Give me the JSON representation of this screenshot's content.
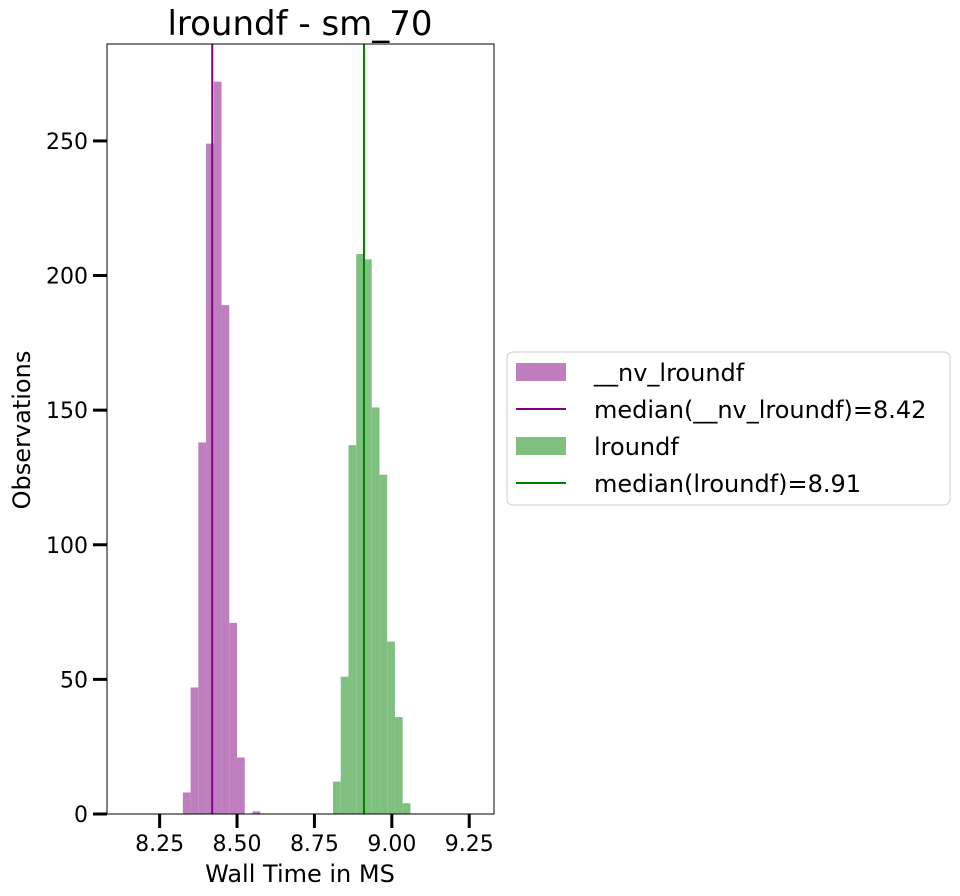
{
  "chart_data": {
    "type": "bar",
    "title": "lroundf - sm_70",
    "xlabel": "Wall Time in MS",
    "ylabel": "Observations",
    "xlim": [
      8.08,
      9.33
    ],
    "ylim": [
      0,
      286
    ],
    "xticks": [
      8.25,
      8.5,
      8.75,
      9.0,
      9.25
    ],
    "xtick_labels": [
      "8.25",
      "8.50",
      "8.75",
      "9.00",
      "9.25"
    ],
    "yticks": [
      0,
      50,
      100,
      150,
      200,
      250
    ],
    "ytick_labels": [
      "0",
      "50",
      "100",
      "150",
      "200",
      "250"
    ],
    "grid": false,
    "legend_position": "outside right",
    "series": [
      {
        "name": "__nv_lroundf",
        "color": "#bf7fbf",
        "bin_width": 0.025,
        "bin_starts": [
          8.325,
          8.35,
          8.375,
          8.4,
          8.425,
          8.45,
          8.475,
          8.5,
          8.525,
          8.55
        ],
        "counts": [
          8,
          47,
          138,
          249,
          272,
          189,
          71,
          21,
          0,
          1
        ]
      },
      {
        "name": "lroundf",
        "color": "#7fbf7f",
        "bin_width": 0.025,
        "bin_starts": [
          8.81,
          8.835,
          8.86,
          8.885,
          8.91,
          8.935,
          8.96,
          8.985,
          9.01,
          9.035
        ],
        "counts": [
          12,
          51,
          137,
          208,
          206,
          151,
          126,
          64,
          36,
          4
        ]
      }
    ],
    "medians": [
      {
        "label": "median(__nv_lroundf)=8.42",
        "value": 8.42,
        "color": "#800080"
      },
      {
        "label": "median(lroundf)=8.91",
        "value": 8.91,
        "color": "#008000"
      }
    ],
    "legend": [
      {
        "kind": "patch",
        "label": "__nv_lroundf",
        "color": "#bf7fbf"
      },
      {
        "kind": "line",
        "label": "median(__nv_lroundf)=8.42",
        "color": "#800080"
      },
      {
        "kind": "patch",
        "label": "lroundf",
        "color": "#7fbf7f"
      },
      {
        "kind": "line",
        "label": "median(lroundf)=8.91",
        "color": "#008000"
      }
    ]
  }
}
